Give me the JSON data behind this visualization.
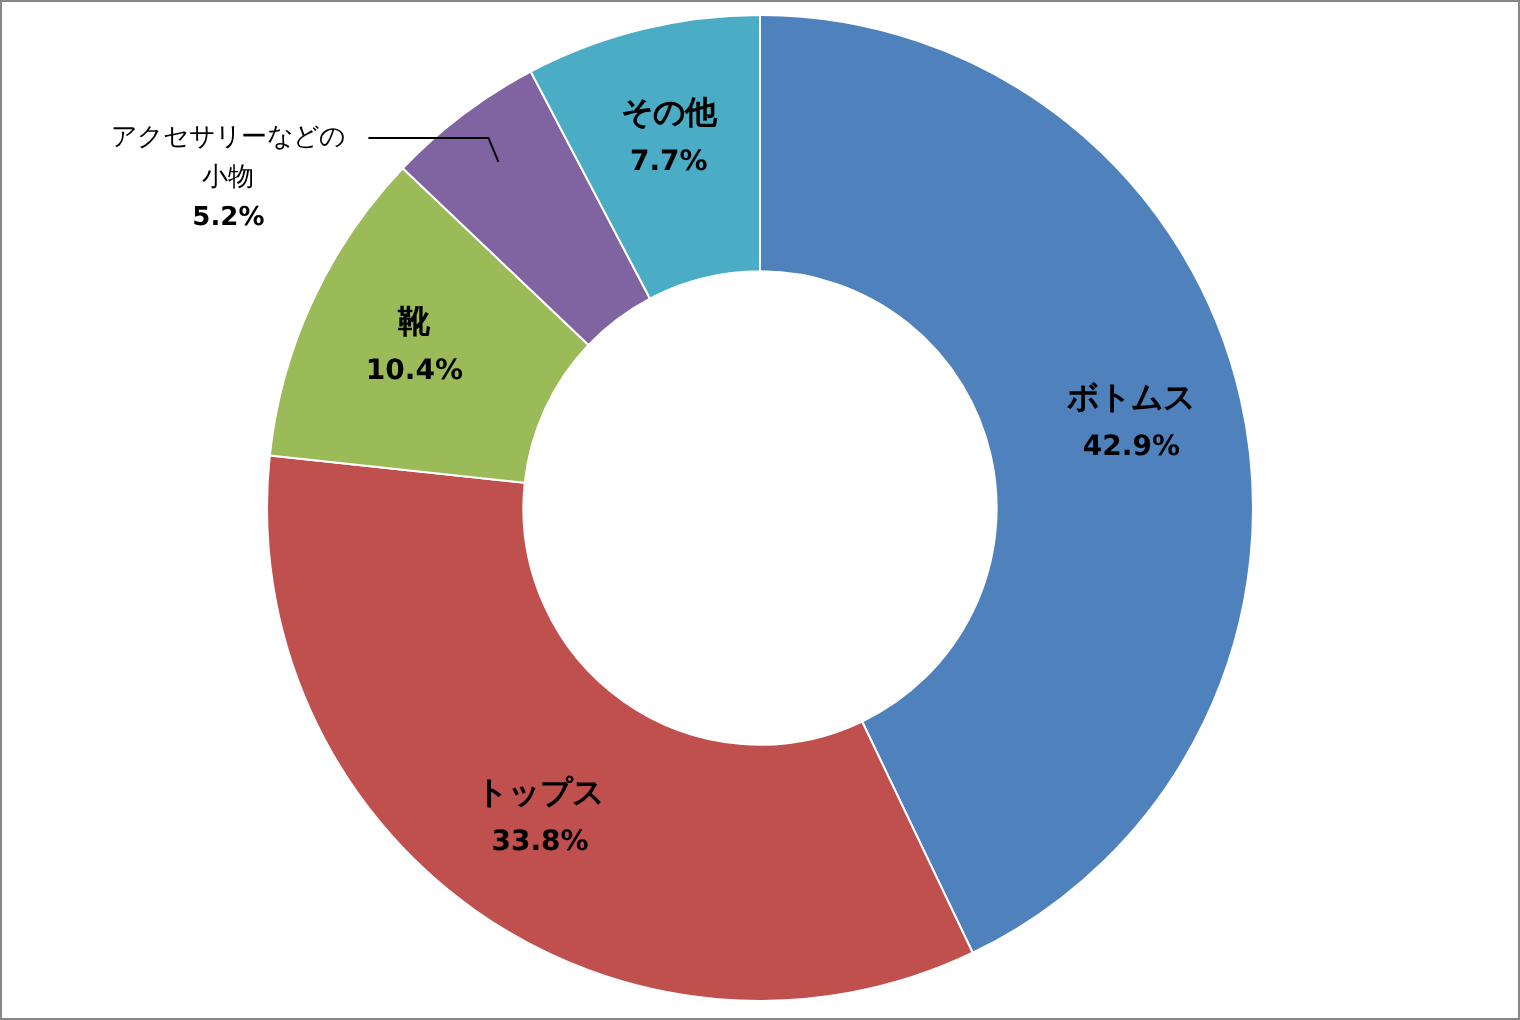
{
  "chart_data": {
    "type": "donut",
    "categories": [
      "ボトムス",
      "トップス",
      "靴",
      "アクセサリーなどの小物",
      "その他"
    ],
    "values": [
      42.9,
      33.8,
      10.4,
      5.2,
      7.7
    ],
    "colors": [
      "#4f81bd",
      "#c0504d",
      "#9bbb59",
      "#8064a2",
      "#4bacc6"
    ],
    "value_labels": [
      "42.9%",
      "33.8%",
      "10.4%",
      "5.2%",
      "7.7%"
    ]
  }
}
